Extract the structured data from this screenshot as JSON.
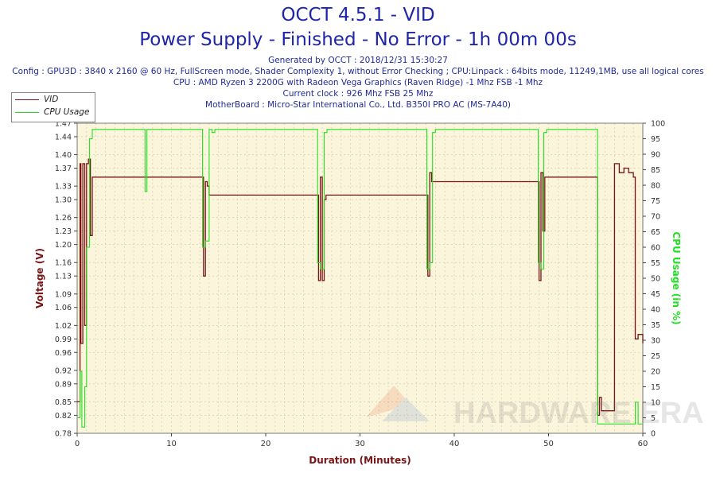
{
  "title": "OCCT 4.5.1 - VID",
  "subtitle": "Power Supply - Finished - No Error - 1h 00m 00s",
  "info_lines": [
    "Generated by OCCT : 2018/12/31 15:30:27",
    "Config : GPU3D : 3840 x 2160 @ 60 Hz, FullScreen mode, Shader Complexity 1, without Error Checking ; CPU:Linpack : 64bits mode, 11249,1MB, use all logical cores",
    "CPU : AMD Ryzen 3 2200G with Radeon Vega Graphics (Raven Ridge) -1 Mhz FSB -1 Mhz",
    "Current clock : 926 Mhz FSB 25 Mhz",
    "MotherBoard : Micro-Star International Co., Ltd. B350I PRO AC (MS-7A40)"
  ],
  "watermark": "HARDWARE ERA",
  "colors": {
    "title": "#1d25a8",
    "vid": "#7a1515",
    "cpu": "#22e022",
    "plot_bg": "#fbf5dc",
    "grid": "#cfc7a8"
  },
  "chart_data": {
    "type": "line",
    "xlabel": "Duration (Minutes)",
    "ylabel_left": "Voltage (V)",
    "ylabel_right": "CPU Usage (in %)",
    "xlim": [
      0,
      60
    ],
    "ylim_left": [
      0.78,
      1.47
    ],
    "ylim_right": [
      0,
      100
    ],
    "x_ticks": [
      0,
      10,
      20,
      30,
      40,
      50,
      60
    ],
    "y_ticks_left": [
      "0.78",
      "0.82",
      "0.85",
      "0.89",
      "0.92",
      "0.96",
      "0.99",
      "1.02",
      "1.06",
      "1.09",
      "1.13",
      "1.16",
      "1.20",
      "1.23",
      "1.26",
      "1.30",
      "1.33",
      "1.37",
      "1.40",
      "1.44",
      "1.47"
    ],
    "y_ticks_right": [
      0,
      5,
      10,
      15,
      20,
      25,
      30,
      35,
      40,
      45,
      50,
      55,
      60,
      65,
      70,
      75,
      80,
      85,
      90,
      95,
      100
    ],
    "grid": true,
    "legend_position": "top-left",
    "series": [
      {
        "name": "VID",
        "axis": "left",
        "x": [
          0,
          0.3,
          0.4,
          0.6,
          0.8,
          1.0,
          1.2,
          1.4,
          1.6,
          2,
          13.2,
          13.4,
          13.6,
          13.8,
          14.0,
          14.2,
          25.4,
          25.6,
          25.8,
          26.0,
          26.2,
          26.4,
          37.0,
          37.2,
          37.4,
          37.6,
          48.8,
          49.0,
          49.2,
          49.4,
          49.6,
          55.0,
          55.2,
          55.4,
          55.6,
          56.0,
          56.5,
          57.0,
          57.5,
          58.0,
          58.5,
          59.0,
          59.2,
          59.5,
          60
        ],
        "y": [
          0.85,
          1.38,
          0.98,
          1.38,
          1.02,
          1.38,
          1.39,
          1.22,
          1.35,
          1.35,
          1.35,
          1.13,
          1.34,
          1.33,
          1.31,
          1.31,
          1.31,
          1.12,
          1.35,
          1.12,
          1.3,
          1.31,
          1.31,
          1.13,
          1.36,
          1.34,
          1.34,
          1.12,
          1.36,
          1.23,
          1.35,
          1.35,
          0.82,
          0.86,
          0.83,
          0.83,
          0.83,
          1.38,
          1.36,
          1.37,
          1.36,
          1.35,
          0.99,
          1.0,
          0.98
        ]
      },
      {
        "name": "CPU Usage",
        "axis": "right",
        "x": [
          0,
          0.3,
          0.5,
          0.8,
          1.0,
          1.3,
          1.6,
          2,
          5,
          7,
          7.2,
          7.4,
          10,
          13.0,
          13.3,
          13.6,
          14.0,
          14.3,
          14.6,
          20,
          25.2,
          25.5,
          25.8,
          26.2,
          26.5,
          26.8,
          30,
          36.8,
          37.1,
          37.4,
          37.7,
          38.0,
          45,
          48.6,
          48.9,
          49.2,
          49.5,
          49.8,
          55.0,
          55.2,
          55.5,
          56,
          57,
          58,
          59.0,
          59.2,
          59.5,
          60
        ],
        "y": [
          5,
          20,
          2,
          15,
          60,
          95,
          98,
          98,
          98,
          98,
          78,
          98,
          98,
          98,
          60,
          62,
          98,
          97,
          98,
          98,
          98,
          55,
          53,
          97,
          98,
          98,
          98,
          98,
          53,
          55,
          97,
          98,
          98,
          98,
          55,
          53,
          97,
          98,
          98,
          3,
          3,
          3,
          3,
          3,
          3,
          10,
          3,
          3
        ]
      }
    ]
  }
}
